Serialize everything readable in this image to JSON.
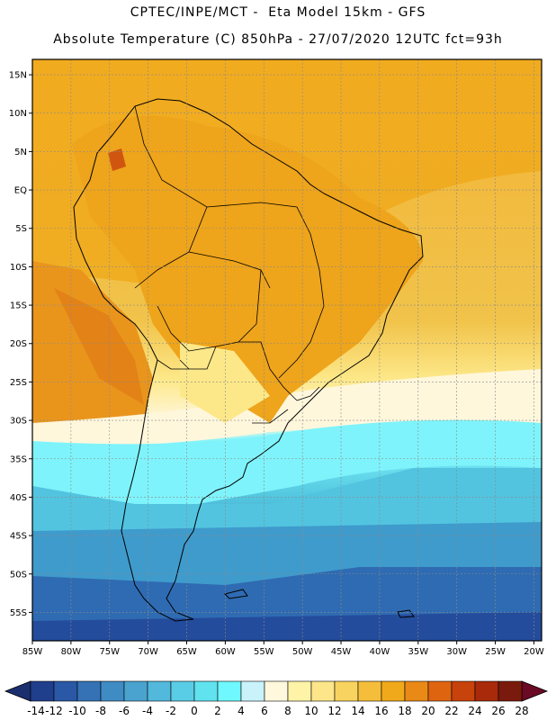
{
  "header": {
    "line1": "CPTEC/INPE/MCT -  Eta Model 15km - GFS",
    "line2": "Absolute Temperature (C) 850hPa - 27/07/2020 12UTC fct=93h"
  },
  "map": {
    "lat_labels": [
      "15N",
      "10N",
      "5N",
      "EQ",
      "5S",
      "10S",
      "15S",
      "20S",
      "25S",
      "30S",
      "35S",
      "40S",
      "45S",
      "50S",
      "55S"
    ],
    "lon_labels": [
      "85W",
      "80W",
      "75W",
      "70W",
      "65W",
      "60W",
      "55W",
      "50W",
      "45W",
      "40W",
      "35W",
      "30W",
      "25W",
      "20W"
    ]
  },
  "colorbar": {
    "labels": [
      "-14",
      "-12",
      "-10",
      "-8",
      "-6",
      "-4",
      "-2",
      "0",
      "2",
      "4",
      "6",
      "8",
      "10",
      "12",
      "14",
      "16",
      "18",
      "20",
      "22",
      "24",
      "26",
      "28"
    ],
    "colors": [
      "#1f3e8c",
      "#2a58a6",
      "#3472b5",
      "#3f8bc4",
      "#4aa3cf",
      "#52b8dc",
      "#5acde6",
      "#60e2ef",
      "#6ff8ff",
      "#c9f2fb",
      "#fff8dc",
      "#fff3a8",
      "#fde68a",
      "#f9d35f",
      "#f4be3b",
      "#f0a91a",
      "#e98a17",
      "#df6410",
      "#c8420c",
      "#a82a0a",
      "#7a1a0c"
    ],
    "under_color": "#1b2f6e",
    "over_color": "#6b0a24"
  }
}
